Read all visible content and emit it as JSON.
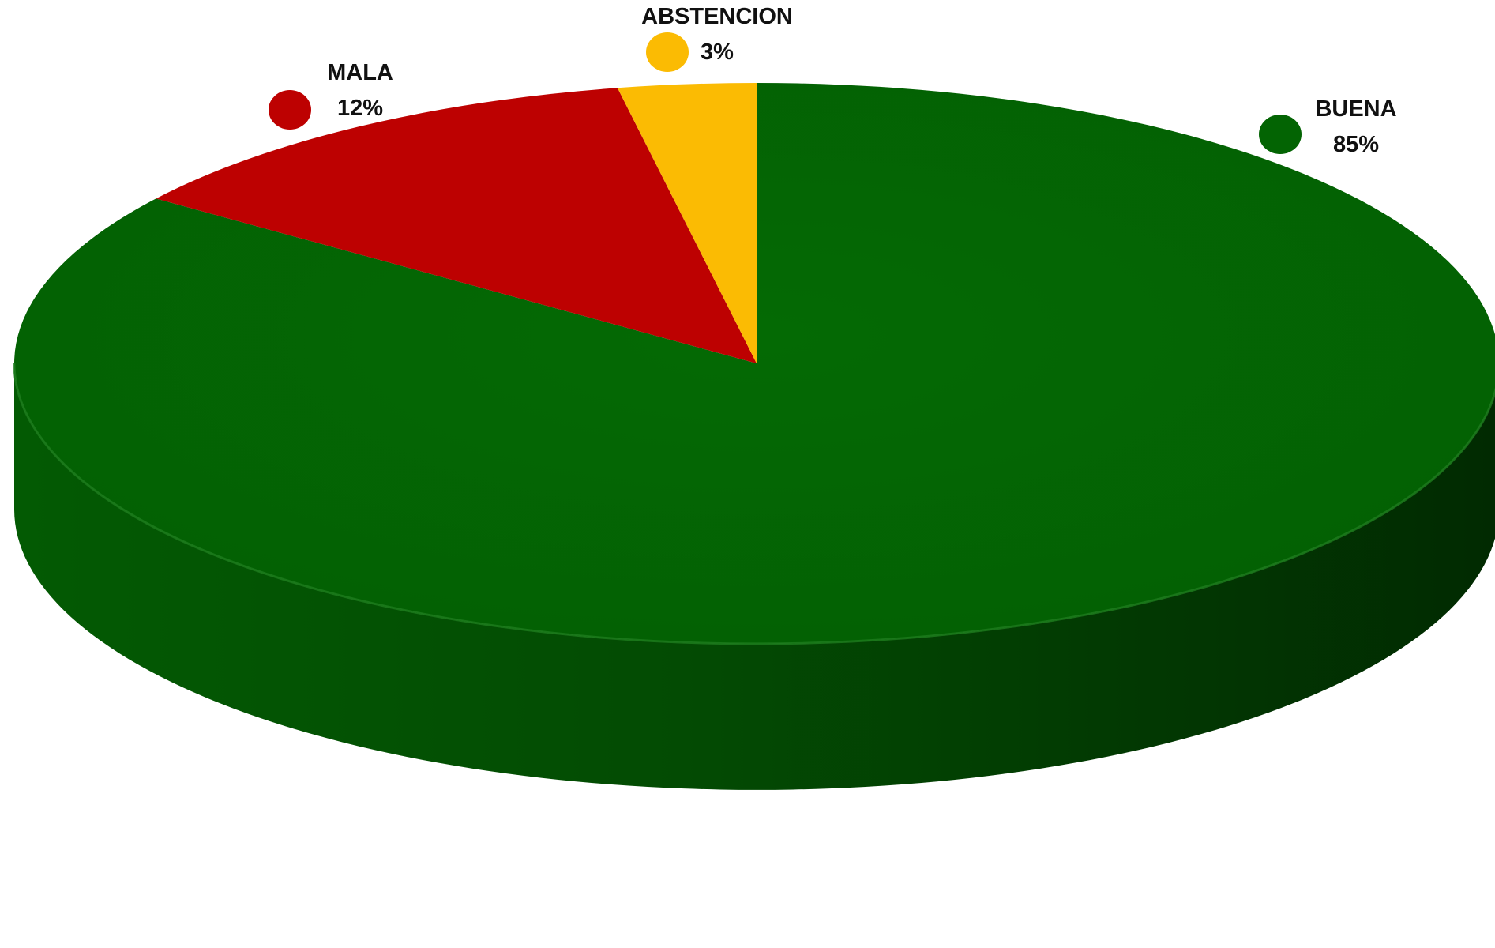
{
  "chart_data": {
    "type": "pie",
    "style": "3d",
    "start_angle": "12 o'clock, clockwise",
    "slices": [
      {
        "label": "BUENA",
        "value": 85,
        "display": "85%",
        "color": "#036403",
        "side_color": "#024d02"
      },
      {
        "label": "MALA",
        "value": 12,
        "display": "12%",
        "color": "#bd0101",
        "side_color": "#8f0000"
      },
      {
        "label": "ABSTENCION",
        "value": 3,
        "display": "3%",
        "color": "#fbbb03",
        "side_color": "#c99502"
      }
    ],
    "legend": "beside each slice",
    "grid": false
  }
}
